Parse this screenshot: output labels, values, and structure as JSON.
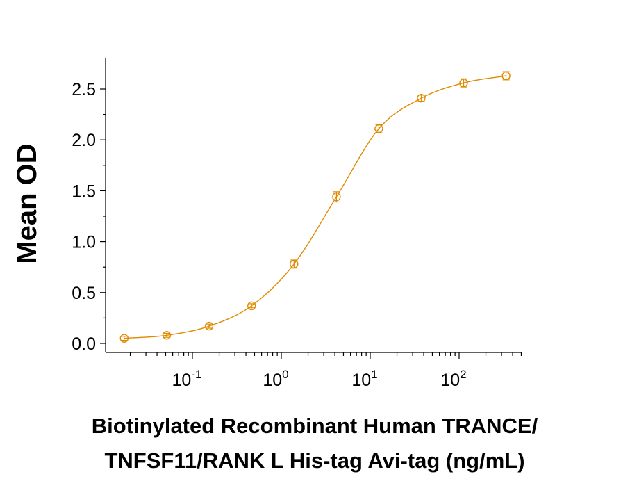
{
  "chart_data": {
    "type": "scatter",
    "title": "",
    "ylabel": "Mean OD",
    "xlabel_lines": [
      "Biotinylated Recombinant Human TRANCE/",
      "TNFSF11/RANK L His-tag Avi-tag (ng/mL)"
    ],
    "x_scale": "log",
    "xlim": [
      0.0133,
      500
    ],
    "ylim": [
      0,
      2.75
    ],
    "y_ticks": [
      {
        "value": 0.0,
        "label": "0.0"
      },
      {
        "value": 0.5,
        "label": "0.5"
      },
      {
        "value": 1.0,
        "label": "1.0"
      },
      {
        "value": 1.5,
        "label": "1.5"
      },
      {
        "value": 2.0,
        "label": "2.0"
      },
      {
        "value": 2.5,
        "label": "2.5"
      }
    ],
    "x_ticks": [
      {
        "value": 0.1,
        "base": "10",
        "exp": "-1"
      },
      {
        "value": 1,
        "base": "10",
        "exp": "0"
      },
      {
        "value": 10,
        "base": "10",
        "exp": "1"
      },
      {
        "value": 100,
        "base": "10",
        "exp": "2"
      }
    ],
    "grid": false,
    "color": "#e08a00",
    "series": [
      {
        "x": [
          0.0171,
          0.0514,
          0.154,
          0.463,
          1.39,
          4.17,
          12.5,
          37.5,
          112.5,
          337.5
        ],
        "y": [
          0.05,
          0.08,
          0.17,
          0.37,
          0.78,
          1.44,
          2.11,
          2.41,
          2.56,
          2.63
        ],
        "err": [
          0.02,
          0.02,
          0.02,
          0.02,
          0.04,
          0.05,
          0.04,
          0.03,
          0.04,
          0.04
        ]
      }
    ],
    "fit_curve": true
  }
}
